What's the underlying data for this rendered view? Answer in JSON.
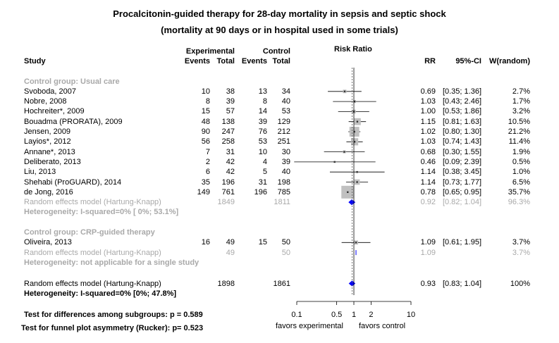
{
  "chart_data": {
    "type": "forest",
    "title": "Procalcitonin-guided therapy for 28-day mortality in sepsis and septic shock",
    "subtitle": "(mortality at 90 days or in hospital used in some trials)",
    "headers": {
      "study": "Study",
      "experimental": "Experimental",
      "control": "Control",
      "events": "Events",
      "total": "Total",
      "plot": "Risk Ratio",
      "rr": "RR",
      "ci": "95%-CI",
      "weight": "W(random)"
    },
    "x_axis": {
      "scale": "log",
      "ticks": [
        "0.1",
        "0.5",
        "1",
        "2",
        "10"
      ],
      "tick_values": [
        0.1,
        0.5,
        1,
        2,
        10
      ],
      "left_label": "favors experimental",
      "right_label": "favors control"
    },
    "subgroups": [
      {
        "label": "Control group: Usual care",
        "studies": [
          {
            "study": "Svoboda, 2007",
            "e_events": "10",
            "e_total": "38",
            "c_events": "13",
            "c_total": "34",
            "rr": 0.69,
            "lo": 0.35,
            "hi": 1.36,
            "rr_text": "0.69",
            "ci_text": "[0.35; 1.36]",
            "w_text": "2.7%",
            "weight": 2.7
          },
          {
            "study": "Nobre, 2008",
            "e_events": "8",
            "e_total": "39",
            "c_events": "8",
            "c_total": "40",
            "rr": 1.03,
            "lo": 0.43,
            "hi": 2.46,
            "rr_text": "1.03",
            "ci_text": "[0.43; 2.46]",
            "w_text": "1.7%",
            "weight": 1.7
          },
          {
            "study": "Hochreiter*, 2009",
            "e_events": "15",
            "e_total": "57",
            "c_events": "14",
            "c_total": "53",
            "rr": 1.0,
            "lo": 0.53,
            "hi": 1.86,
            "rr_text": "1.00",
            "ci_text": "[0.53; 1.86]",
            "w_text": "3.2%",
            "weight": 3.2
          },
          {
            "study": "Bouadma (PRORATA), 2009",
            "e_events": "48",
            "e_total": "138",
            "c_events": "39",
            "c_total": "129",
            "rr": 1.15,
            "lo": 0.81,
            "hi": 1.63,
            "rr_text": "1.15",
            "ci_text": "[0.81; 1.63]",
            "w_text": "10.5%",
            "weight": 10.5
          },
          {
            "study": "Jensen, 2009",
            "e_events": "90",
            "e_total": "247",
            "c_events": "76",
            "c_total": "212",
            "rr": 1.02,
            "lo": 0.8,
            "hi": 1.3,
            "rr_text": "1.02",
            "ci_text": "[0.80; 1.30]",
            "w_text": "21.2%",
            "weight": 21.2
          },
          {
            "study": "Layios*, 2012",
            "e_events": "56",
            "e_total": "258",
            "c_events": "53",
            "c_total": "251",
            "rr": 1.03,
            "lo": 0.74,
            "hi": 1.43,
            "rr_text": "1.03",
            "ci_text": "[0.74; 1.43]",
            "w_text": "11.4%",
            "weight": 11.4
          },
          {
            "study": "Annane*, 2013",
            "e_events": "7",
            "e_total": "31",
            "c_events": "10",
            "c_total": "30",
            "rr": 0.68,
            "lo": 0.3,
            "hi": 1.55,
            "rr_text": "0.68",
            "ci_text": "[0.30; 1.55]",
            "w_text": "1.9%",
            "weight": 1.9
          },
          {
            "study": "Deliberato, 2013",
            "e_events": "2",
            "e_total": "42",
            "c_events": "4",
            "c_total": "39",
            "rr": 0.46,
            "lo": 0.09,
            "hi": 2.39,
            "rr_text": "0.46",
            "ci_text": "[0.09; 2.39]",
            "w_text": "0.5%",
            "weight": 0.5
          },
          {
            "study": "Liu, 2013",
            "e_events": "6",
            "e_total": "42",
            "c_events": "5",
            "c_total": "40",
            "rr": 1.14,
            "lo": 0.38,
            "hi": 3.45,
            "rr_text": "1.14",
            "ci_text": "[0.38; 3.45]",
            "w_text": "1.0%",
            "weight": 1.0
          },
          {
            "study": "Shehabi (ProGUARD), 2014",
            "e_events": "35",
            "e_total": "196",
            "c_events": "31",
            "c_total": "198",
            "rr": 1.14,
            "lo": 0.73,
            "hi": 1.77,
            "rr_text": "1.14",
            "ci_text": "[0.73; 1.77]",
            "w_text": "6.5%",
            "weight": 6.5
          },
          {
            "study": "de Jong, 2016",
            "e_events": "149",
            "e_total": "761",
            "c_events": "196",
            "c_total": "785",
            "rr": 0.78,
            "lo": 0.65,
            "hi": 0.95,
            "rr_text": "0.78",
            "ci_text": "[0.65; 0.95]",
            "w_text": "35.7%",
            "weight": 35.7
          }
        ],
        "pooled": {
          "label": "Random effects model  (Hartung-Knapp)",
          "e_total": "1849",
          "c_total": "1811",
          "rr": 0.92,
          "lo": 0.82,
          "hi": 1.04,
          "rr_text": "0.92",
          "ci_text": "[0.82; 1.04]",
          "w_text": "96.3%"
        },
        "heterogeneity": "Heterogeneity: I-squared=0% [  0%; 53.1%]"
      },
      {
        "label": "Control group: CRP-guided therapy",
        "studies": [
          {
            "study": "Oliveira, 2013",
            "e_events": "16",
            "e_total": "49",
            "c_events": "15",
            "c_total": "50",
            "rr": 1.09,
            "lo": 0.61,
            "hi": 1.95,
            "rr_text": "1.09",
            "ci_text": "[0.61; 1.95]",
            "w_text": "3.7%",
            "weight": 3.7
          }
        ],
        "pooled": {
          "label": "Random effects model  (Hartung-Knapp)",
          "e_total": "49",
          "c_total": "50",
          "rr": 1.09,
          "lo": 1.09,
          "hi": 1.09,
          "rr_text": "1.09",
          "ci_text": "",
          "w_text": "3.7%"
        },
        "heterogeneity": "Heterogeneity: not applicable for a single study"
      }
    ],
    "overall": {
      "label": "Random effects model  (Hartung-Knapp)",
      "e_total": "1898",
      "c_total": "1861",
      "rr": 0.93,
      "lo": 0.83,
      "hi": 1.04,
      "rr_text": "0.93",
      "ci_text": "[0.83; 1.04]",
      "w_text": "100%"
    },
    "overall_heterogeneity": "Heterogeneity: I-squared=0% [0%; 47.8%]",
    "footer": {
      "subgroup_test": "Test for differences among subgroups: p = 0.589",
      "funnel_test": "Test for funnel plot asymmetry (Rucker): p= 0.523"
    },
    "colors": {
      "diamond": "#0000ff",
      "grey_text": "#a9a9a9",
      "box": "#c0c0c0"
    }
  }
}
